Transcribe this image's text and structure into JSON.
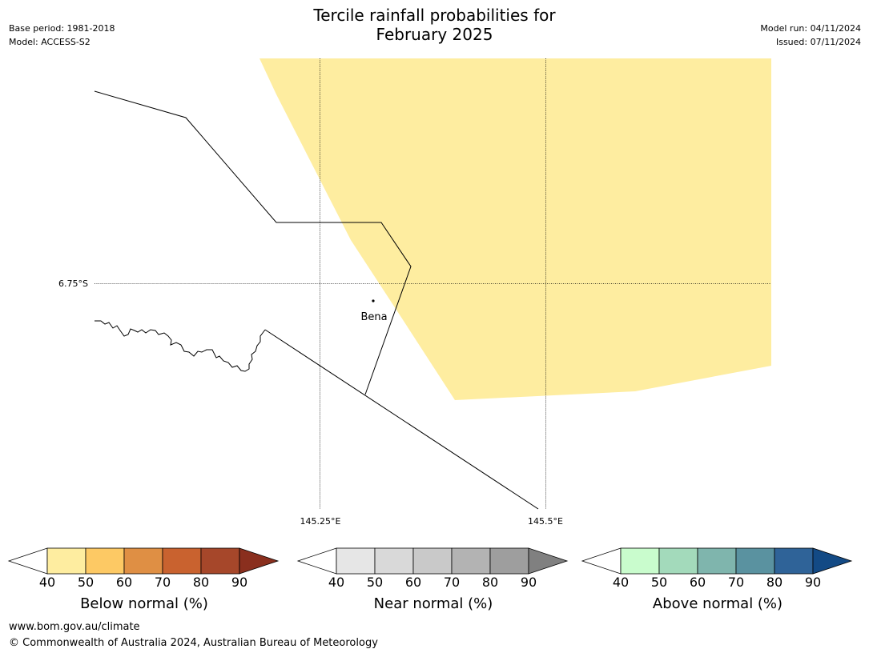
{
  "title": {
    "line1": "Tercile rainfall probabilities for",
    "line2": "February 2025"
  },
  "meta": {
    "base_period": "Base period: 1981-2018",
    "model": "Model: ACCESS-S2",
    "model_run": "Model run: 04/11/2024",
    "issued": "Issued: 07/11/2024"
  },
  "map": {
    "shaded_category": "Below normal",
    "shade_color": "#feeda0",
    "lat_label": "6.75°S",
    "lon_labels": [
      "145.25°E",
      "145.5°E"
    ],
    "place": "Bena"
  },
  "colorbars": [
    {
      "label": "Below normal (%)",
      "ticks": [
        "40",
        "50",
        "60",
        "70",
        "80",
        "90"
      ],
      "colors": [
        "#ffffff",
        "#feeda0",
        "#fdc964",
        "#df8f44",
        "#c9622f",
        "#a6472a",
        "#8a2f1e"
      ]
    },
    {
      "label": "Near normal (%)",
      "ticks": [
        "40",
        "50",
        "60",
        "70",
        "80",
        "90"
      ],
      "colors": [
        "#ffffff",
        "#e6e6e6",
        "#d9d9d9",
        "#c9c9c9",
        "#b3b3b3",
        "#9e9e9e",
        "#808080"
      ]
    },
    {
      "label": "Above normal (%)",
      "ticks": [
        "40",
        "50",
        "60",
        "70",
        "80",
        "90"
      ],
      "colors": [
        "#ffffff",
        "#c9fccd",
        "#a3dabb",
        "#7fb5ad",
        "#5a92a0",
        "#2f6398",
        "#134a85"
      ]
    }
  ],
  "footer": {
    "url": "www.bom.gov.au/climate",
    "copyright": "© Commonwealth of Australia 2024, Australian Bureau of Meteorology"
  }
}
